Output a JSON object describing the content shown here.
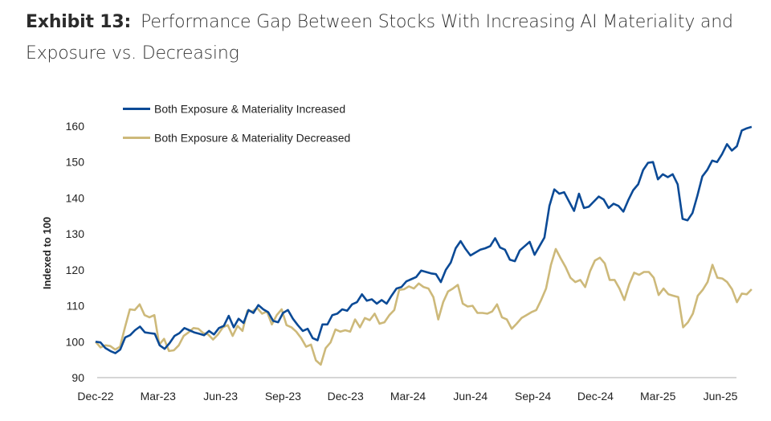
{
  "title": {
    "lead": "Exhibit 13:",
    "text": "Performance Gap Between Stocks With Increasing AI Materiality and Exposure vs. Decreasing"
  },
  "chart_data": {
    "type": "line",
    "title": "Performance Gap Between Stocks With Increasing AI Materiality and Exposure vs. Decreasing",
    "xlabel": "",
    "ylabel": "Indexed to 100",
    "ylim": [
      90,
      162
    ],
    "yticks": [
      90,
      100,
      110,
      120,
      130,
      140,
      150,
      160
    ],
    "xtick_labels": [
      "Dec-22",
      "Mar-23",
      "Jun-23",
      "Sep-23",
      "Dec-23",
      "Mar-24",
      "Jun-24",
      "Sep-24",
      "Dec-24",
      "Mar-25",
      "Jun-25"
    ],
    "x_range_months": [
      0,
      31.5
    ],
    "grid": false,
    "legend_position": "top-left",
    "series": [
      {
        "name": "Both Exposure & Materiality Increased",
        "color": "#0b4a96",
        "values": [
          100.0,
          99.8,
          98.2,
          97.4,
          96.8,
          97.8,
          101.2,
          101.8,
          103.2,
          104.2,
          102.6,
          102.4,
          102.2,
          99.0,
          98.0,
          99.6,
          101.6,
          102.4,
          103.8,
          103.2,
          102.6,
          102.2,
          101.8,
          103.0,
          102.0,
          103.8,
          104.4,
          107.2,
          104.0,
          106.4,
          105.2,
          108.8,
          108.0,
          110.2,
          109.0,
          108.2,
          105.8,
          105.4,
          108.0,
          108.8,
          106.4,
          104.6,
          103.0,
          103.6,
          101.0,
          100.4,
          104.8,
          104.8,
          107.4,
          107.8,
          109.0,
          108.6,
          110.4,
          111.0,
          113.2,
          111.4,
          111.8,
          110.6,
          111.6,
          110.6,
          112.8,
          114.8,
          115.2,
          116.8,
          117.4,
          118.0,
          119.8,
          119.4,
          119.0,
          118.8,
          116.6,
          120.0,
          122.0,
          126.0,
          128.0,
          125.8,
          124.0,
          124.8,
          125.6,
          126.0,
          126.6,
          128.8,
          126.2,
          125.6,
          122.8,
          122.4,
          125.4,
          126.6,
          127.8,
          124.2,
          126.6,
          129.0,
          137.8,
          142.4,
          141.2,
          141.6,
          139.0,
          136.4,
          141.2,
          137.2,
          137.6,
          139.0,
          140.4,
          139.6,
          137.2,
          138.4,
          137.8,
          136.2,
          139.4,
          142.2,
          143.8,
          147.8,
          149.8,
          150.0,
          145.2,
          146.6,
          145.8,
          146.6,
          143.8,
          134.2,
          133.8,
          135.8,
          140.6,
          146.0,
          147.8,
          150.4,
          150.0,
          152.2,
          155.0,
          153.2,
          154.4,
          158.8,
          159.4,
          159.8
        ]
      },
      {
        "name": "Both Exposure & Materiality Decreased",
        "color": "#cdb97a",
        "values": [
          100.0,
          98.4,
          99.0,
          98.8,
          97.8,
          98.6,
          104.0,
          109.0,
          108.8,
          110.4,
          107.4,
          106.8,
          107.4,
          99.2,
          100.8,
          97.4,
          97.6,
          99.0,
          101.6,
          102.6,
          103.8,
          103.6,
          102.4,
          102.0,
          100.6,
          102.0,
          104.0,
          104.6,
          101.6,
          104.4,
          103.0,
          108.6,
          108.4,
          109.4,
          107.8,
          108.4,
          104.8,
          107.4,
          109.0,
          104.6,
          104.0,
          102.8,
          101.0,
          98.6,
          99.2,
          94.8,
          93.6,
          98.2,
          99.8,
          103.4,
          102.8,
          103.2,
          102.8,
          106.2,
          104.0,
          106.6,
          106.0,
          107.8,
          105.0,
          105.4,
          107.4,
          108.8,
          114.4,
          114.6,
          115.4,
          114.8,
          116.2,
          115.2,
          114.8,
          112.4,
          106.2,
          111.0,
          114.0,
          114.8,
          115.8,
          110.6,
          109.8,
          110.0,
          108.0,
          108.0,
          107.8,
          108.4,
          110.4,
          106.8,
          106.2,
          103.6,
          105.0,
          106.6,
          107.4,
          108.2,
          108.8,
          111.6,
          114.8,
          121.4,
          125.8,
          123.2,
          120.8,
          117.8,
          116.6,
          117.2,
          115.2,
          119.6,
          122.6,
          123.4,
          121.8,
          117.2,
          117.2,
          114.8,
          111.6,
          116.0,
          119.2,
          118.6,
          119.4,
          119.4,
          117.8,
          113.0,
          114.8,
          113.2,
          112.8,
          112.4,
          104.0,
          105.4,
          107.8,
          112.8,
          114.4,
          116.6,
          121.4,
          117.8,
          117.6,
          116.6,
          114.6,
          111.0,
          113.4,
          113.2,
          114.6
        ]
      }
    ]
  }
}
